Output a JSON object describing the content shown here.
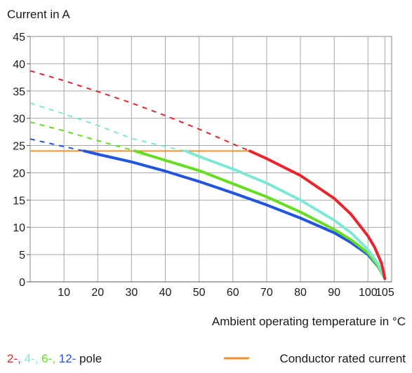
{
  "chart_data": {
    "type": "line",
    "ylabel": "Current in A",
    "xlabel": "Ambient operating temperature in °C",
    "xlim": [
      0,
      107
    ],
    "ylim": [
      0,
      45
    ],
    "x_ticks": [
      10,
      20,
      30,
      40,
      50,
      60,
      70,
      80,
      90,
      100,
      105
    ],
    "y_ticks": [
      0,
      5,
      10,
      15,
      20,
      25,
      30,
      35,
      40,
      45
    ],
    "grid": true,
    "legend": {
      "poles_prefix": [
        {
          "label": "2-,",
          "color": "#e8252c"
        },
        {
          "label": "4-,",
          "color": "#7de8d6"
        },
        {
          "label": "6-,",
          "color": "#66dd22"
        },
        {
          "label": "12-",
          "color": "#2255dd"
        }
      ],
      "poles_suffix": "pole",
      "rated_label": "Conductor rated current",
      "rated_color": "#f7901e"
    },
    "rated_current": {
      "value": 24,
      "x_range": [
        0,
        65
      ],
      "color": "#f7901e"
    },
    "series": [
      {
        "label_ref": "2-",
        "color": "#e8252c",
        "dashed": [
          [
            0,
            38.7
          ],
          [
            10,
            36.9
          ],
          [
            20,
            34.9
          ],
          [
            30,
            32.8
          ],
          [
            40,
            30.5
          ],
          [
            50,
            28.0
          ],
          [
            60,
            25.3
          ],
          [
            65,
            24.0
          ]
        ],
        "solid": [
          [
            65,
            24.0
          ],
          [
            70,
            22.6
          ],
          [
            80,
            19.5
          ],
          [
            90,
            15.3
          ],
          [
            95,
            12.4
          ],
          [
            100,
            8.4
          ],
          [
            102,
            6.3
          ],
          [
            104,
            3.4
          ],
          [
            105,
            0.6
          ]
        ]
      },
      {
        "label_ref": "4-",
        "color": "#7de8d6",
        "dashed": [
          [
            0,
            32.8
          ],
          [
            10,
            30.8
          ],
          [
            20,
            28.7
          ],
          [
            30,
            26.3
          ],
          [
            40,
            24.8
          ],
          [
            46,
            24.0
          ]
        ],
        "solid": [
          [
            46,
            24.0
          ],
          [
            50,
            23.0
          ],
          [
            60,
            20.7
          ],
          [
            70,
            18.1
          ],
          [
            80,
            15.0
          ],
          [
            90,
            11.3
          ],
          [
            95,
            9.0
          ],
          [
            100,
            5.9
          ],
          [
            103,
            3.3
          ],
          [
            105,
            0.6
          ]
        ]
      },
      {
        "label_ref": "6-",
        "color": "#66dd22",
        "dashed": [
          [
            0,
            29.3
          ],
          [
            10,
            27.7
          ],
          [
            20,
            25.9
          ],
          [
            31,
            24.0
          ]
        ],
        "solid": [
          [
            31,
            24.0
          ],
          [
            40,
            22.3
          ],
          [
            50,
            20.4
          ],
          [
            60,
            18.0
          ],
          [
            70,
            15.6
          ],
          [
            80,
            12.8
          ],
          [
            90,
            9.6
          ],
          [
            95,
            7.7
          ],
          [
            100,
            5.3
          ],
          [
            103,
            2.9
          ],
          [
            105,
            0.6
          ]
        ]
      },
      {
        "label_ref": "12-",
        "color": "#2255dd",
        "dashed": [
          [
            0,
            26.2
          ],
          [
            10,
            24.8
          ],
          [
            16,
            24.0
          ]
        ],
        "solid": [
          [
            16,
            24.0
          ],
          [
            20,
            23.4
          ],
          [
            30,
            22.0
          ],
          [
            40,
            20.3
          ],
          [
            50,
            18.4
          ],
          [
            60,
            16.3
          ],
          [
            70,
            14.1
          ],
          [
            80,
            11.7
          ],
          [
            90,
            9.0
          ],
          [
            95,
            7.2
          ],
          [
            100,
            5.0
          ],
          [
            103,
            2.8
          ],
          [
            105,
            0.6
          ]
        ]
      }
    ]
  }
}
